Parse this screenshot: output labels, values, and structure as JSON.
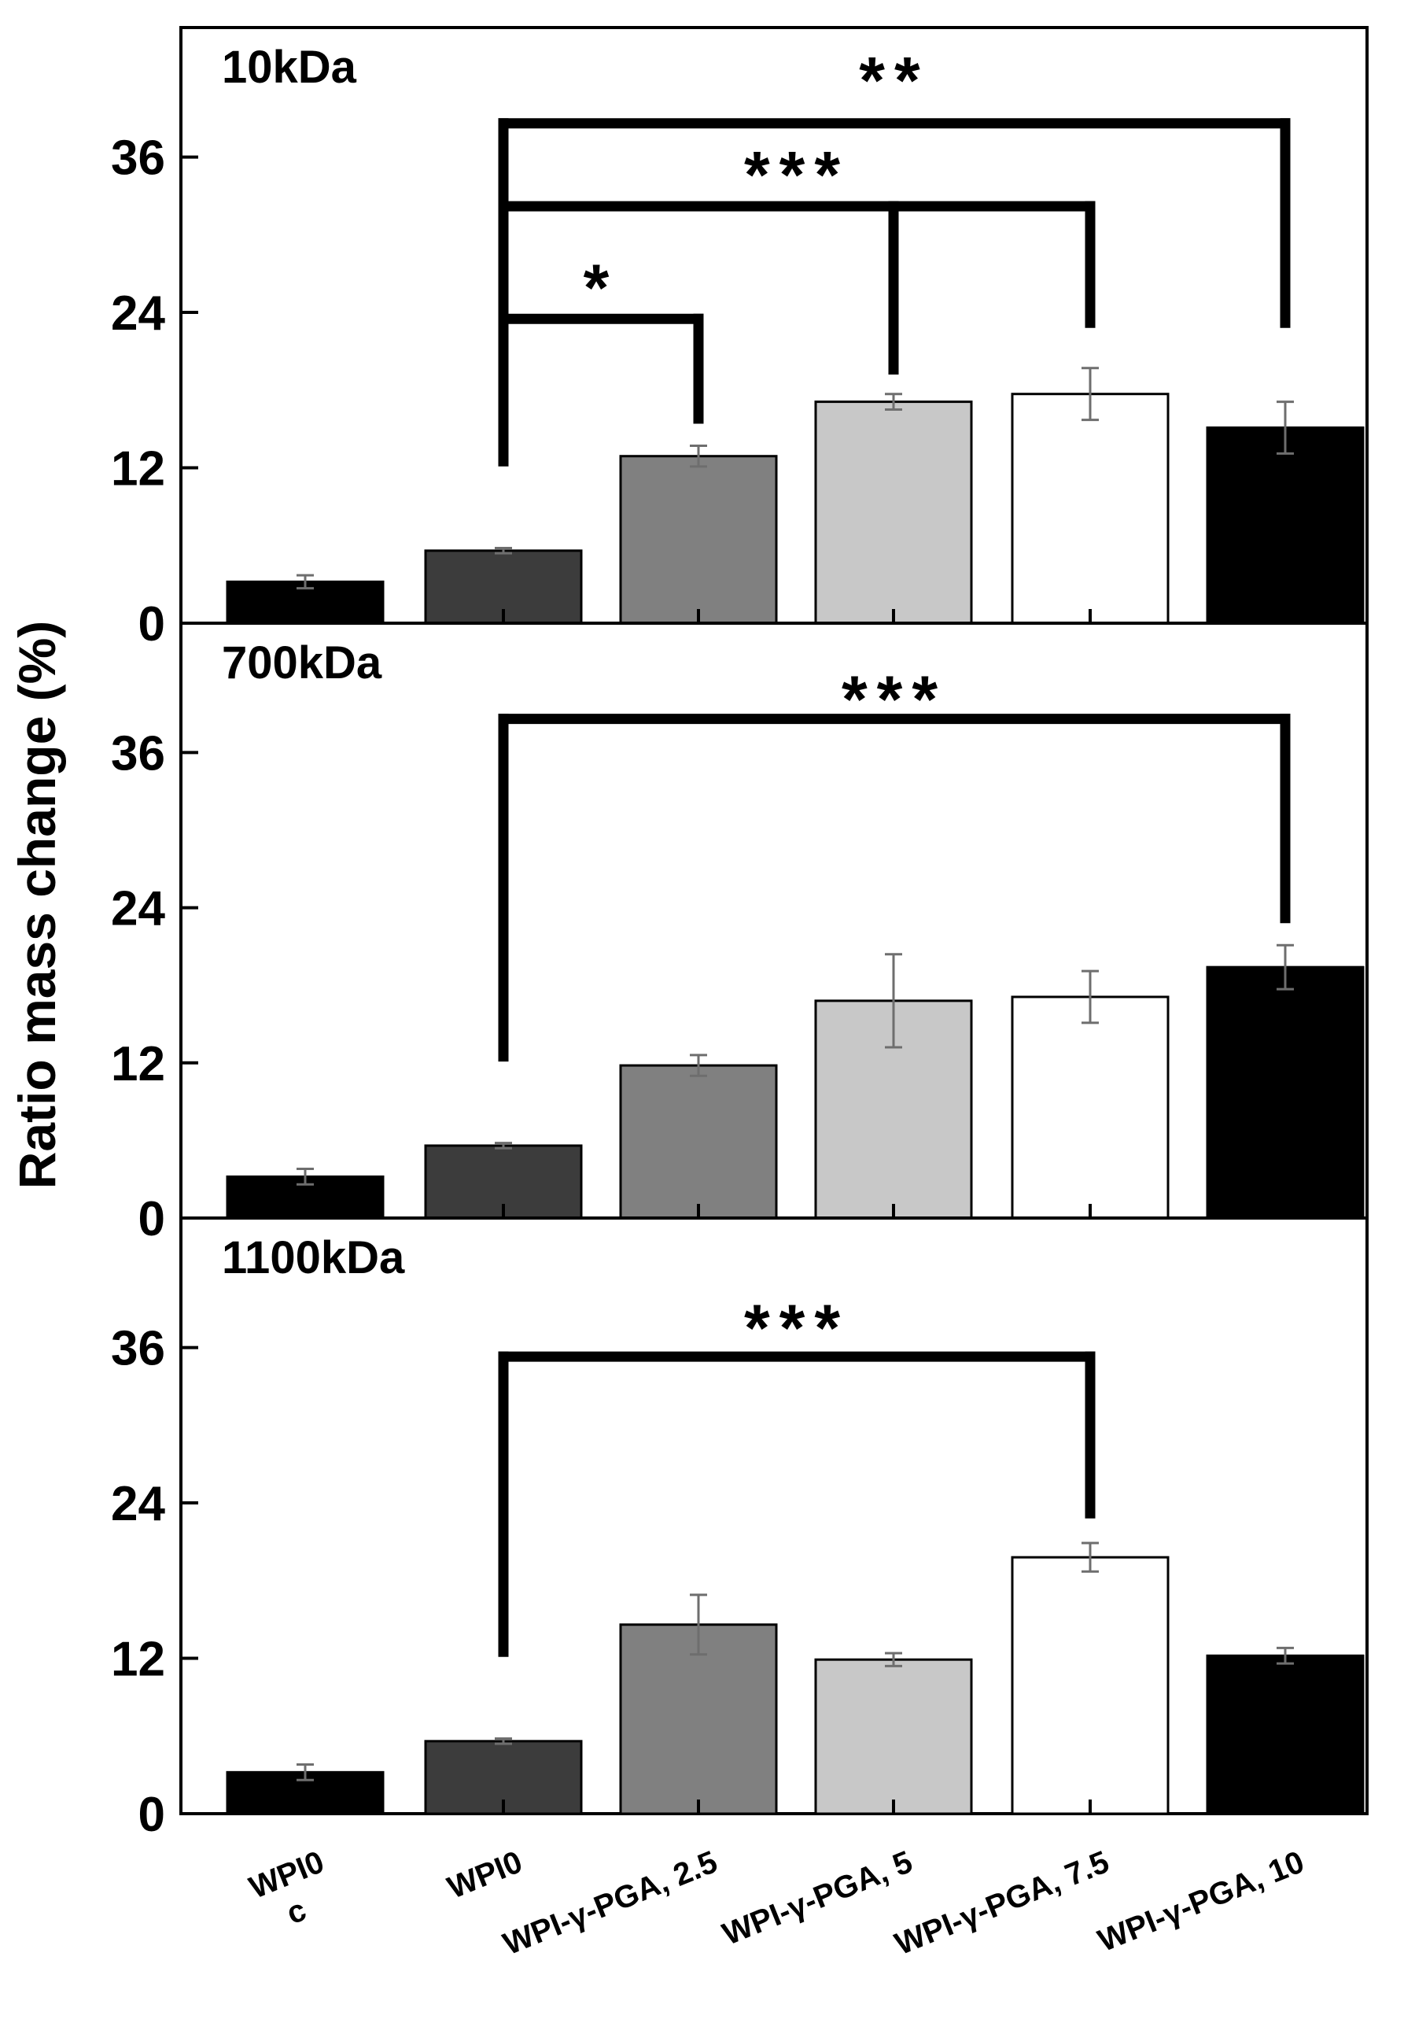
{
  "figure": {
    "ylabel": "Ratio mass change (%)",
    "tick_color": "#000000"
  },
  "chart_data": [
    {
      "type": "bar",
      "title": "10kDa",
      "xlabel": "",
      "ylabel": "Ratio mass change (%)",
      "ylim": [
        0,
        46
      ],
      "yticks": [
        0,
        12,
        24,
        36
      ],
      "categories": [
        "WPI0 c",
        "WPI0",
        "WPI-γ-PGA, 2.5",
        "WPI-γ-PGA, 5",
        "WPI-γ-PGA, 7.5",
        "WPI-γ-PGA, 10"
      ],
      "values": [
        3.2,
        5.6,
        12.9,
        17.1,
        17.7,
        15.1
      ],
      "errors": [
        0.5,
        0.2,
        0.8,
        0.6,
        2.0,
        2.0
      ],
      "colors": [
        "#000000",
        "#3c3c3c",
        "#808080",
        "#c8c8c8",
        "#ffffff",
        "#000000"
      ],
      "significance": [
        {
          "from": 1,
          "to": 2,
          "label": "*"
        },
        {
          "from": 1,
          "to": [
            3,
            4
          ],
          "label": "***"
        },
        {
          "from": 1,
          "to": 5,
          "label": "**"
        }
      ]
    },
    {
      "type": "bar",
      "title": "700kDa",
      "xlabel": "",
      "ylabel": "Ratio mass change (%)",
      "ylim": [
        0,
        46
      ],
      "yticks": [
        0,
        12,
        24,
        36
      ],
      "categories": [
        "WPI0 c",
        "WPI0",
        "WPI-γ-PGA, 2.5",
        "WPI-γ-PGA, 5",
        "WPI-γ-PGA, 7.5",
        "WPI-γ-PGA, 10"
      ],
      "values": [
        3.2,
        5.6,
        11.8,
        16.8,
        17.1,
        19.4
      ],
      "errors": [
        0.6,
        0.2,
        0.8,
        3.6,
        2.0,
        1.7
      ],
      "colors": [
        "#000000",
        "#3c3c3c",
        "#808080",
        "#c8c8c8",
        "#ffffff",
        "#000000"
      ],
      "significance": [
        {
          "from": 1,
          "to": 5,
          "label": "***"
        }
      ]
    },
    {
      "type": "bar",
      "title": "1100kDa",
      "xlabel": "",
      "ylabel": "Ratio mass change (%)",
      "ylim": [
        0,
        46
      ],
      "yticks": [
        0,
        12,
        24,
        36
      ],
      "categories": [
        "WPI0 c",
        "WPI0",
        "WPI-γ-PGA, 2.5",
        "WPI-γ-PGA, 5",
        "WPI-γ-PGA, 7.5",
        "WPI-γ-PGA, 10"
      ],
      "values": [
        3.2,
        5.6,
        14.6,
        11.9,
        19.8,
        12.2
      ],
      "errors": [
        0.6,
        0.2,
        2.3,
        0.5,
        1.1,
        0.6
      ],
      "colors": [
        "#000000",
        "#3c3c3c",
        "#808080",
        "#c8c8c8",
        "#ffffff",
        "#000000"
      ],
      "significance": [
        {
          "from": 1,
          "to": 4,
          "label": "***"
        }
      ]
    }
  ],
  "xaxis": {
    "tick_labels": [
      {
        "main": "WPI0",
        "sub": "c"
      },
      {
        "main": "WPI0",
        "sub": ""
      },
      {
        "main": "WPI-γ-PGA, 2.5",
        "sub": ""
      },
      {
        "main": "WPI-γ-PGA, 5",
        "sub": ""
      },
      {
        "main": "WPI-γ-PGA, 7.5",
        "sub": ""
      },
      {
        "main": "WPI-γ-PGA, 10",
        "sub": ""
      }
    ]
  }
}
